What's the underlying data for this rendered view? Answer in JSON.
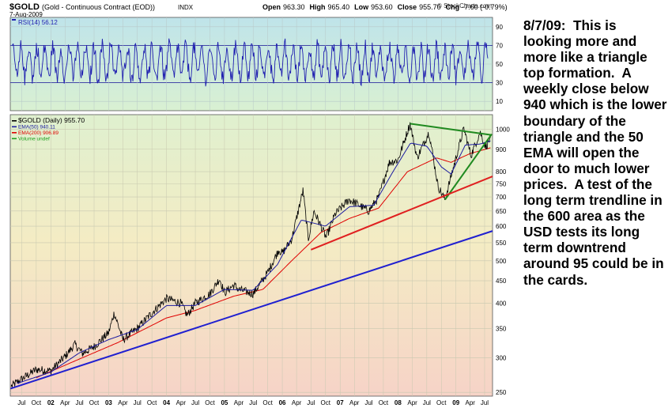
{
  "header": {
    "symbol": "$GOLD",
    "description": "(Gold - Continuous Contract (EOD))",
    "exchange": "INDX",
    "date": "7-Aug-2009",
    "watermark": "© StockCharts.com",
    "ohlc": [
      {
        "label": "Open",
        "value": "963.30"
      },
      {
        "label": "High",
        "value": "965.40"
      },
      {
        "label": "Low",
        "value": "953.60"
      },
      {
        "label": "Close",
        "value": "955.70"
      },
      {
        "label": "Chg",
        "value": "-7.60 (-0.79%)"
      }
    ]
  },
  "annotation": "8/7/09:  This is looking more and more like a triangle top formation.  A weekly close below 940 which is the lower boundary of the triangle and the 50 EMA will open the door to much lower prices.  A test of the long term trendline in the 600 area as the USD tests its long term downtrend around 95 could be in the cards.",
  "colors": {
    "price": "#000000",
    "ema50": "#1a1aa0",
    "ema200": "#e00000",
    "rsi": "#2020b0",
    "trend_green": "#208a20",
    "trend_red": "#e02020",
    "trend_blue": "#2020d0"
  },
  "chart_data": [
    {
      "type": "line",
      "panel": "RSI",
      "legend": [
        {
          "name": "RSI(14) 56.12",
          "color": "#2020b0"
        }
      ],
      "y_ticks": [
        10,
        30,
        50,
        70,
        90
      ],
      "ylim": [
        0,
        100
      ],
      "levels": [
        30,
        70
      ],
      "last_value": 56.12
    },
    {
      "type": "line",
      "panel": "Price",
      "legend": [
        {
          "name": "$GOLD (Daily) 955.70",
          "color": "#000000"
        },
        {
          "name": "EMA(50) 940.11",
          "color": "#1a1aa0"
        },
        {
          "name": "EMA(200) 906.89",
          "color": "#e00000"
        },
        {
          "name": "Volume undef",
          "color": "#20a020"
        }
      ],
      "y_scale": "log",
      "y_ticks": [
        250,
        300,
        350,
        400,
        450,
        500,
        550,
        600,
        650,
        700,
        750,
        800,
        900,
        1000
      ],
      "ylim": [
        245,
        1080
      ],
      "x_ticks": [
        {
          "label": "Jul",
          "date": "2001-07-01"
        },
        {
          "label": "Oct",
          "date": "2001-10-01"
        },
        {
          "label": "02",
          "date": "2002-01-01"
        },
        {
          "label": "Apr",
          "date": "2002-04-01"
        },
        {
          "label": "Jul",
          "date": "2002-07-01"
        },
        {
          "label": "Oct",
          "date": "2002-10-01"
        },
        {
          "label": "03",
          "date": "2003-01-01"
        },
        {
          "label": "Apr",
          "date": "2003-04-01"
        },
        {
          "label": "Jul",
          "date": "2003-07-01"
        },
        {
          "label": "Oct",
          "date": "2003-10-01"
        },
        {
          "label": "04",
          "date": "2004-01-01"
        },
        {
          "label": "Apr",
          "date": "2004-04-01"
        },
        {
          "label": "Jul",
          "date": "2004-07-01"
        },
        {
          "label": "Oct",
          "date": "2004-10-01"
        },
        {
          "label": "05",
          "date": "2005-01-01"
        },
        {
          "label": "Apr",
          "date": "2005-04-01"
        },
        {
          "label": "Jul",
          "date": "2005-07-01"
        },
        {
          "label": "Oct",
          "date": "2005-10-01"
        },
        {
          "label": "06",
          "date": "2006-01-01"
        },
        {
          "label": "Apr",
          "date": "2006-04-01"
        },
        {
          "label": "Jul",
          "date": "2006-07-01"
        },
        {
          "label": "Oct",
          "date": "2006-10-01"
        },
        {
          "label": "07",
          "date": "2007-01-01"
        },
        {
          "label": "Apr",
          "date": "2007-04-01"
        },
        {
          "label": "Jul",
          "date": "2007-07-01"
        },
        {
          "label": "Oct",
          "date": "2007-10-01"
        },
        {
          "label": "08",
          "date": "2008-01-01"
        },
        {
          "label": "Apr",
          "date": "2008-04-01"
        },
        {
          "label": "Jul",
          "date": "2008-07-01"
        },
        {
          "label": "Oct",
          "date": "2008-10-01"
        },
        {
          "label": "09",
          "date": "2009-01-01"
        },
        {
          "label": "Apr",
          "date": "2009-04-01"
        },
        {
          "label": "Jul",
          "date": "2009-07-01"
        }
      ],
      "xlim": [
        "2001-04-20",
        "2009-08-20"
      ],
      "series": [
        {
          "name": "$GOLD",
          "points": [
            [
              "2001-04-25",
              258
            ],
            [
              "2001-07-01",
              268
            ],
            [
              "2001-10-01",
              282
            ],
            [
              "2002-01-01",
              280
            ],
            [
              "2002-04-01",
              302
            ],
            [
              "2002-06-01",
              322
            ],
            [
              "2002-07-20",
              307
            ],
            [
              "2002-10-01",
              318
            ],
            [
              "2003-01-01",
              342
            ],
            [
              "2003-02-05",
              380
            ],
            [
              "2003-04-01",
              330
            ],
            [
              "2003-07-01",
              350
            ],
            [
              "2003-10-01",
              380
            ],
            [
              "2004-01-01",
              410
            ],
            [
              "2004-04-01",
              400
            ],
            [
              "2004-05-10",
              375
            ],
            [
              "2004-07-01",
              400
            ],
            [
              "2004-10-01",
              420
            ],
            [
              "2004-12-01",
              455
            ],
            [
              "2005-01-01",
              422
            ],
            [
              "2005-03-01",
              440
            ],
            [
              "2005-04-01",
              430
            ],
            [
              "2005-07-01",
              420
            ],
            [
              "2005-10-01",
              470
            ],
            [
              "2005-12-10",
              530
            ],
            [
              "2006-01-01",
              520
            ],
            [
              "2006-03-01",
              560
            ],
            [
              "2006-05-12",
              725
            ],
            [
              "2006-06-14",
              560
            ],
            [
              "2006-07-20",
              650
            ],
            [
              "2006-10-05",
              565
            ],
            [
              "2006-12-01",
              640
            ],
            [
              "2007-02-25",
              690
            ],
            [
              "2007-04-01",
              680
            ],
            [
              "2007-07-01",
              650
            ],
            [
              "2007-09-01",
              700
            ],
            [
              "2007-11-08",
              840
            ],
            [
              "2008-01-01",
              850
            ],
            [
              "2008-03-17",
              1030
            ],
            [
              "2008-05-01",
              860
            ],
            [
              "2008-07-15",
              985
            ],
            [
              "2008-09-10",
              740
            ],
            [
              "2008-10-24",
              690
            ],
            [
              "2008-12-01",
              780
            ],
            [
              "2009-02-20",
              1005
            ],
            [
              "2009-04-06",
              870
            ],
            [
              "2009-06-02",
              985
            ],
            [
              "2009-07-08",
              910
            ],
            [
              "2009-08-07",
              955.7
            ]
          ]
        },
        {
          "name": "EMA(50)",
          "points": [
            [
              "2001-06-01",
              262
            ],
            [
              "2002-01-01",
              278
            ],
            [
              "2002-07-01",
              308
            ],
            [
              "2003-01-01",
              330
            ],
            [
              "2003-07-01",
              348
            ],
            [
              "2004-01-01",
              395
            ],
            [
              "2004-07-01",
              395
            ],
            [
              "2005-01-01",
              430
            ],
            [
              "2005-07-01",
              428
            ],
            [
              "2005-12-01",
              490
            ],
            [
              "2006-05-01",
              620
            ],
            [
              "2006-10-01",
              600
            ],
            [
              "2007-03-01",
              665
            ],
            [
              "2007-08-01",
              670
            ],
            [
              "2007-12-01",
              800
            ],
            [
              "2008-03-20",
              930
            ],
            [
              "2008-07-01",
              915
            ],
            [
              "2008-10-01",
              820
            ],
            [
              "2008-12-01",
              790
            ],
            [
              "2009-03-01",
              920
            ],
            [
              "2009-06-01",
              925
            ],
            [
              "2009-08-07",
              940.11
            ]
          ]
        },
        {
          "name": "EMA(200)",
          "points": [
            [
              "2001-10-01",
              270
            ],
            [
              "2002-07-01",
              298
            ],
            [
              "2003-03-01",
              325
            ],
            [
              "2004-01-01",
              370
            ],
            [
              "2004-07-01",
              385
            ],
            [
              "2005-03-01",
              415
            ],
            [
              "2005-09-01",
              430
            ],
            [
              "2006-03-01",
              500
            ],
            [
              "2006-09-01",
              580
            ],
            [
              "2007-03-01",
              625
            ],
            [
              "2007-09-01",
              660
            ],
            [
              "2008-03-01",
              800
            ],
            [
              "2008-09-01",
              860
            ],
            [
              "2008-12-01",
              840
            ],
            [
              "2009-04-01",
              880
            ],
            [
              "2009-08-07",
              906.89
            ]
          ]
        }
      ],
      "trendlines": [
        {
          "name": "triangle-upper",
          "color": "#208a20",
          "from": [
            "2008-03-17",
            1030
          ],
          "to": [
            "2009-08-15",
            970
          ]
        },
        {
          "name": "triangle-lower",
          "color": "#208a20",
          "from": [
            "2008-10-24",
            690
          ],
          "to": [
            "2009-08-15",
            975
          ]
        },
        {
          "name": "red-trendline",
          "color": "#e02020",
          "from": [
            "2006-07-01",
            530
          ],
          "to": [
            "2009-08-20",
            780
          ]
        },
        {
          "name": "blue-trendline",
          "color": "#2020d0",
          "from": [
            "2001-04-22",
            255
          ],
          "to": [
            "2009-08-20",
            585
          ]
        }
      ]
    }
  ]
}
